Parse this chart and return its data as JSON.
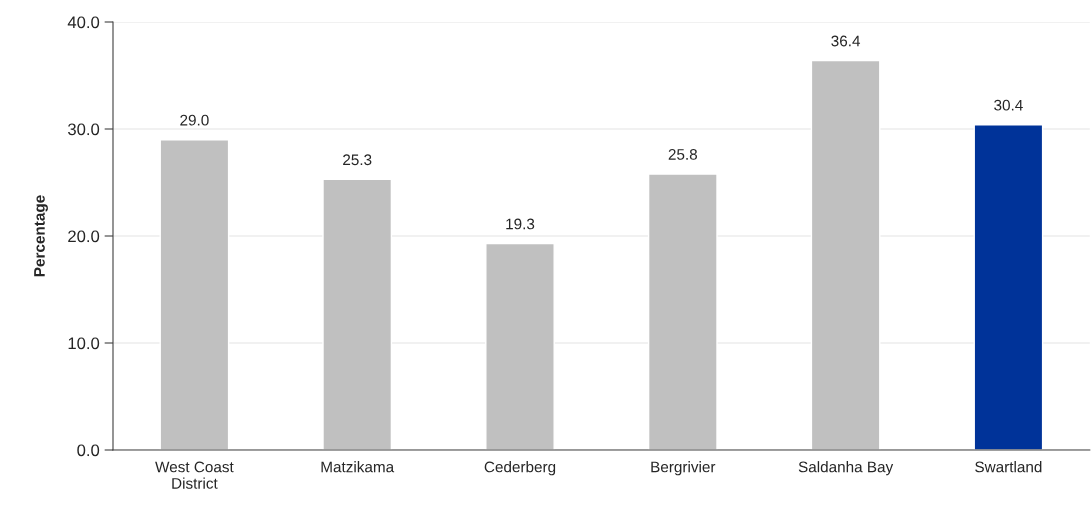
{
  "chart_data": {
    "type": "bar",
    "ylabel": "Percentage",
    "categories": [
      "West Coast\nDistrict",
      "Matzikama",
      "Cederberg",
      "Bergrivier",
      "Saldanha Bay",
      "Swartland"
    ],
    "values": [
      29.0,
      25.3,
      19.3,
      25.8,
      36.4,
      30.4
    ],
    "colors": [
      "#c0c0c0",
      "#c0c0c0",
      "#c0c0c0",
      "#c0c0c0",
      "#c0c0c0",
      "#003399"
    ],
    "value_labels": [
      "29.0",
      "25.3",
      "19.3",
      "25.8",
      "36.4",
      "30.4"
    ],
    "ylim": [
      0,
      40
    ],
    "yticks": [
      {
        "value": 0,
        "label": "0.0"
      },
      {
        "value": 10,
        "label": "10.0"
      },
      {
        "value": 20,
        "label": "20.0"
      },
      {
        "value": 30,
        "label": "30.0"
      },
      {
        "value": 40,
        "label": "40.0"
      }
    ],
    "grid": "y",
    "legend": false
  }
}
